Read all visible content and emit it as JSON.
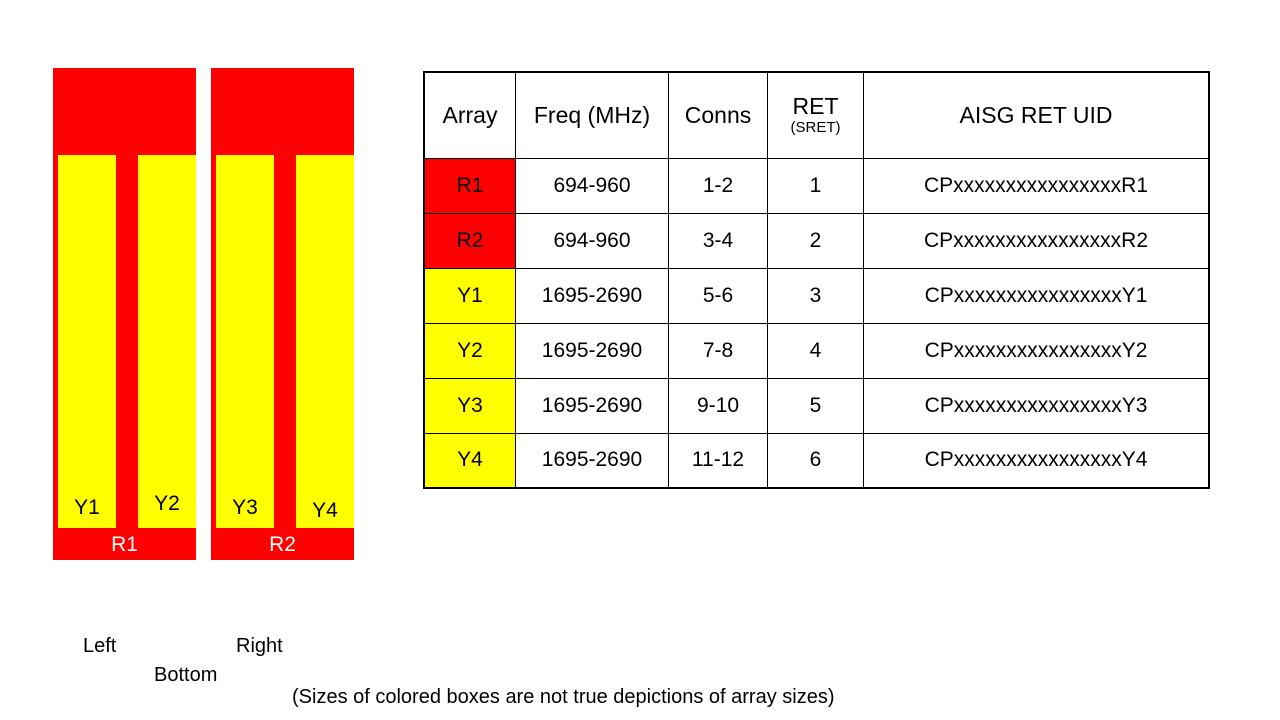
{
  "diagram": {
    "colors": {
      "panel": "#FF0000",
      "bar": "#FFFF00",
      "panel_label_text": "#FFFFFF",
      "bar_label_text": "#000000"
    },
    "panels": [
      {
        "label": "R1",
        "bars": [
          {
            "label": "Y1"
          },
          {
            "label": "Y2"
          }
        ]
      },
      {
        "label": "R2",
        "bars": [
          {
            "label": "Y3"
          },
          {
            "label": "Y4"
          }
        ]
      }
    ]
  },
  "table": {
    "headers": {
      "array": "Array",
      "freq": "Freq (MHz)",
      "conns": "Conns",
      "ret_line1": "RET",
      "ret_line2": "(SRET)",
      "uid": "AISG RET UID"
    },
    "rows": [
      {
        "array": "R1",
        "color": "#FF0000",
        "freq": "694-960",
        "conns": "1-2",
        "ret": "1",
        "uid": "CPxxxxxxxxxxxxxxxxR1"
      },
      {
        "array": "R2",
        "color": "#FF0000",
        "freq": "694-960",
        "conns": "3-4",
        "ret": "2",
        "uid": "CPxxxxxxxxxxxxxxxxR2"
      },
      {
        "array": "Y1",
        "color": "#FFFF00",
        "freq": "1695-2690",
        "conns": "5-6",
        "ret": "3",
        "uid": "CPxxxxxxxxxxxxxxxxY1"
      },
      {
        "array": "Y2",
        "color": "#FFFF00",
        "freq": "1695-2690",
        "conns": "7-8",
        "ret": "4",
        "uid": "CPxxxxxxxxxxxxxxxxY2"
      },
      {
        "array": "Y3",
        "color": "#FFFF00",
        "freq": "1695-2690",
        "conns": "9-10",
        "ret": "5",
        "uid": "CPxxxxxxxxxxxxxxxxY3"
      },
      {
        "array": "Y4",
        "color": "#FFFF00",
        "freq": "1695-2690",
        "conns": "11-12",
        "ret": "6",
        "uid": "CPxxxxxxxxxxxxxxxxY4"
      }
    ]
  },
  "orientation_labels": {
    "left": "Left",
    "right": "Right",
    "bottom": "Bottom"
  },
  "note": "(Sizes of colored boxes are not true depictions of array sizes)"
}
